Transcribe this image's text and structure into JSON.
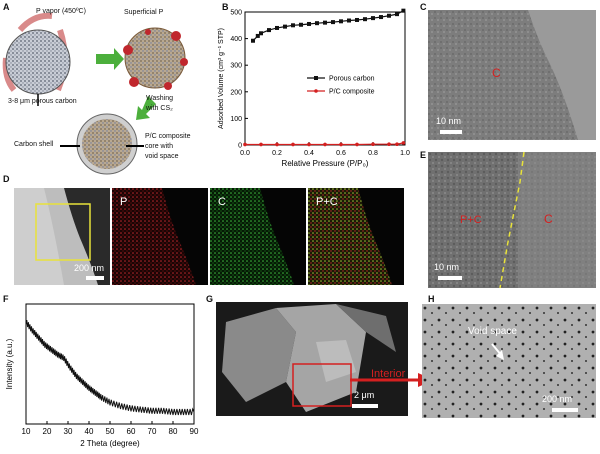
{
  "panels": {
    "A": {
      "label": "A",
      "p_vapor": "P vapor (450ºC)",
      "porous_carbon": "3-8 μm porous carbon",
      "superficial_p": "Superficial P",
      "washing_1": "Washing",
      "washing_2": "with CS₂",
      "carbon_shell": "Carbon shell",
      "composite_1": "P/C composite",
      "composite_2": "core with",
      "composite_3": "void space"
    },
    "B": {
      "label": "B"
    },
    "C": {
      "label": "C",
      "element": "C",
      "scale": "10 nm"
    },
    "D": {
      "label": "D",
      "scale": "200 nm",
      "map_p": "P",
      "map_c": "C",
      "map_pc": "P+C"
    },
    "E": {
      "label": "E",
      "left": "P+C",
      "right": "C",
      "scale": "10 nm"
    },
    "F": {
      "label": "F"
    },
    "G": {
      "label": "G",
      "scale": "2 μm",
      "arrow_label": "Interior"
    },
    "H": {
      "label": "H",
      "void_label": "Void space",
      "scale": "200 nm"
    }
  },
  "colors": {
    "green_arrow": "#4caf3c",
    "red": "#d42020",
    "yellow": "#e8e23a",
    "pink_arrow": "#d98a8a"
  },
  "chart_data": [
    {
      "type": "line",
      "panel": "B",
      "xlabel": "Relative Pressure (P/P₀)",
      "ylabel": "Adsorbed Volume (cm³ g⁻¹ STP)",
      "xlim": [
        0.0,
        1.0
      ],
      "ylim": [
        0,
        500
      ],
      "xticks": [
        "0.0",
        "0.2",
        "0.4",
        "0.6",
        "0.8",
        "1.0"
      ],
      "yticks": [
        "0",
        "100",
        "200",
        "300",
        "400",
        "500"
      ],
      "legend_position": "center-right",
      "series": [
        {
          "name": "Porous carbon",
          "color": "#111111",
          "marker": "square",
          "x": [
            0.05,
            0.08,
            0.1,
            0.15,
            0.2,
            0.25,
            0.3,
            0.35,
            0.4,
            0.45,
            0.5,
            0.55,
            0.6,
            0.65,
            0.7,
            0.75,
            0.8,
            0.85,
            0.9,
            0.95,
            0.99
          ],
          "y": [
            392,
            410,
            420,
            432,
            440,
            445,
            450,
            452,
            455,
            458,
            460,
            462,
            465,
            468,
            470,
            473,
            477,
            481,
            486,
            492,
            505
          ]
        },
        {
          "name": "P/C composite",
          "color": "#d42020",
          "marker": "circle",
          "x": [
            0.0,
            0.1,
            0.2,
            0.3,
            0.4,
            0.5,
            0.6,
            0.7,
            0.8,
            0.9,
            0.95,
            0.99
          ],
          "y": [
            2,
            2,
            2,
            2,
            2,
            2,
            2,
            2,
            3,
            3,
            3,
            8
          ]
        }
      ]
    },
    {
      "type": "line",
      "panel": "F",
      "xlabel": "2 Theta (degree)",
      "ylabel": "Intensity (a.u.)",
      "xlim": [
        10,
        90
      ],
      "xticks": [
        "10",
        "20",
        "30",
        "40",
        "50",
        "60",
        "70",
        "80",
        "90"
      ],
      "yticks": [],
      "series": [
        {
          "name": "",
          "color": "#111111",
          "x": [
            10,
            13,
            16,
            19,
            22,
            25,
            28,
            31,
            34,
            37,
            40,
            43,
            46,
            50,
            55,
            60,
            65,
            70,
            75,
            80,
            85,
            90
          ],
          "y": [
            0.85,
            0.78,
            0.72,
            0.66,
            0.62,
            0.58,
            0.55,
            0.47,
            0.4,
            0.35,
            0.3,
            0.26,
            0.22,
            0.18,
            0.15,
            0.13,
            0.12,
            0.11,
            0.11,
            0.1,
            0.1,
            0.1
          ]
        }
      ]
    }
  ]
}
